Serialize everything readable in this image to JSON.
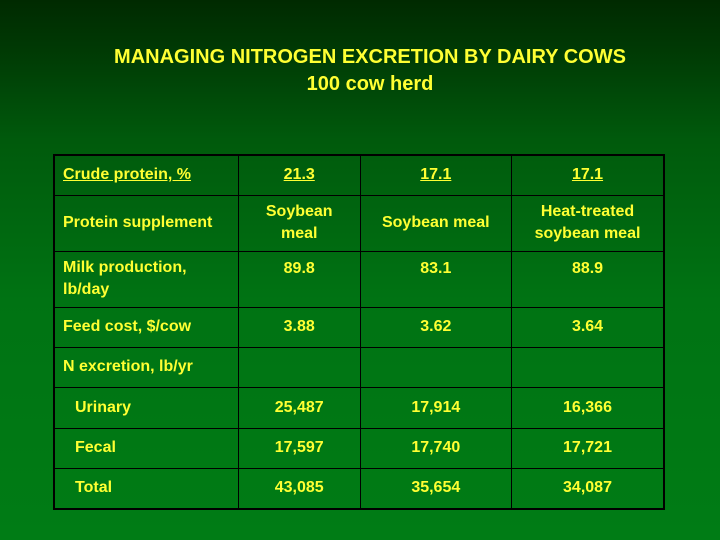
{
  "title": {
    "line1": "MANAGING NITROGEN EXCRETION BY DAIRY COWS",
    "line2": "100 cow herd"
  },
  "table": {
    "header": [
      "Crude protein, %",
      "21.3",
      "17.1",
      "17.1"
    ],
    "rows": [
      {
        "label": "Protein supplement",
        "values": [
          "Soybean meal",
          "Soybean meal",
          "Heat-treated soybean meal"
        ]
      },
      {
        "label": "Milk production, lb/day",
        "values": [
          "89.8",
          "83.1",
          "88.9"
        ]
      },
      {
        "label": "Feed cost, $/cow",
        "values": [
          "3.88",
          "3.62",
          "3.64"
        ]
      },
      {
        "label": "N excretion, lb/yr",
        "values": [
          "",
          "",
          ""
        ]
      },
      {
        "label": "Urinary",
        "values": [
          "25,487",
          "17,914",
          "16,366"
        ]
      },
      {
        "label": "Fecal",
        "values": [
          "17,597",
          "17,740",
          "17,721"
        ]
      },
      {
        "label": "Total",
        "values": [
          "43,085",
          "35,654",
          "34,087"
        ]
      }
    ]
  },
  "colors": {
    "text": "#ffff33",
    "background": "#007c15",
    "border": "#000000"
  }
}
